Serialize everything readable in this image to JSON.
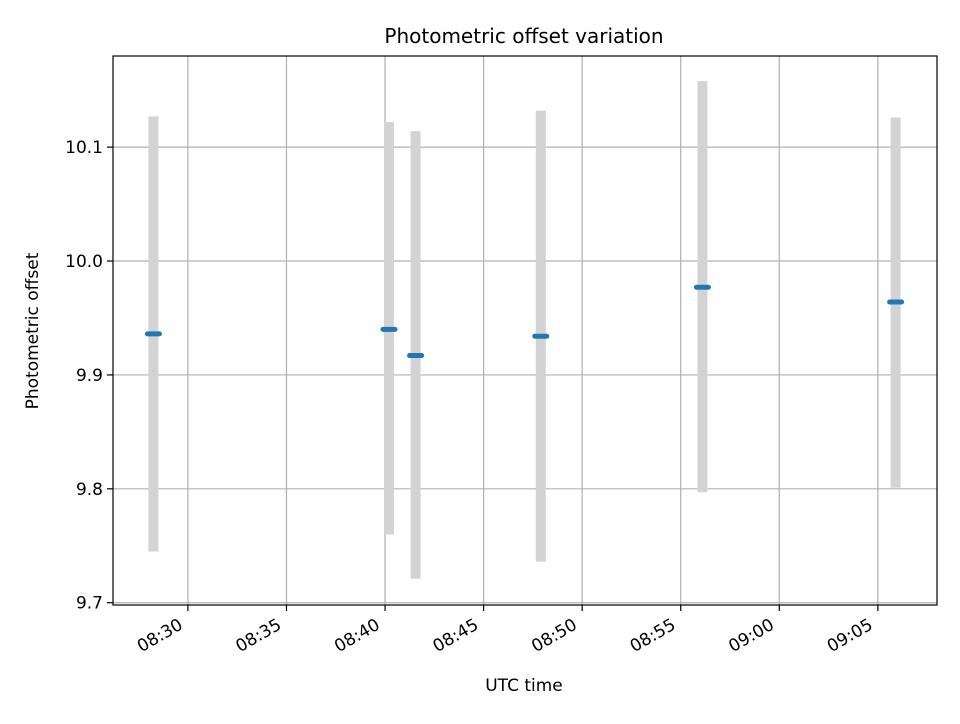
{
  "chart_data": {
    "type": "scatter",
    "title": "Photometric offset variation",
    "xlabel": "UTC time",
    "ylabel": "Photometric offset",
    "x_tick_labels": [
      "08:30",
      "08:35",
      "08:40",
      "08:45",
      "08:50",
      "08:55",
      "09:00",
      "09:05"
    ],
    "x_tick_minutes": [
      30,
      35,
      40,
      45,
      50,
      55,
      60,
      65
    ],
    "y_tick_labels": [
      "9.7",
      "9.8",
      "9.9",
      "10.0",
      "10.1"
    ],
    "y_tick_values": [
      9.7,
      9.8,
      9.9,
      10.0,
      10.1
    ],
    "xlim_minutes": [
      26.2,
      68.0
    ],
    "ylim": [
      9.698,
      10.18
    ],
    "grid": true,
    "points": [
      {
        "minute": 28.25,
        "y": 9.936,
        "y_low": 9.745,
        "y_high": 10.127
      },
      {
        "minute": 40.2,
        "y": 9.94,
        "y_low": 9.76,
        "y_high": 10.122
      },
      {
        "minute": 41.55,
        "y": 9.917,
        "y_low": 9.721,
        "y_high": 10.114
      },
      {
        "minute": 47.9,
        "y": 9.934,
        "y_low": 9.736,
        "y_high": 10.132
      },
      {
        "minute": 56.1,
        "y": 9.977,
        "y_low": 9.797,
        "y_high": 10.158
      },
      {
        "minute": 65.9,
        "y": 9.964,
        "y_low": 9.801,
        "y_high": 10.126
      }
    ],
    "colors": {
      "point": "#1f77b4",
      "errorbar": "#d3d3d3",
      "grid": "#b0b0b0",
      "axes": "#000000"
    }
  }
}
